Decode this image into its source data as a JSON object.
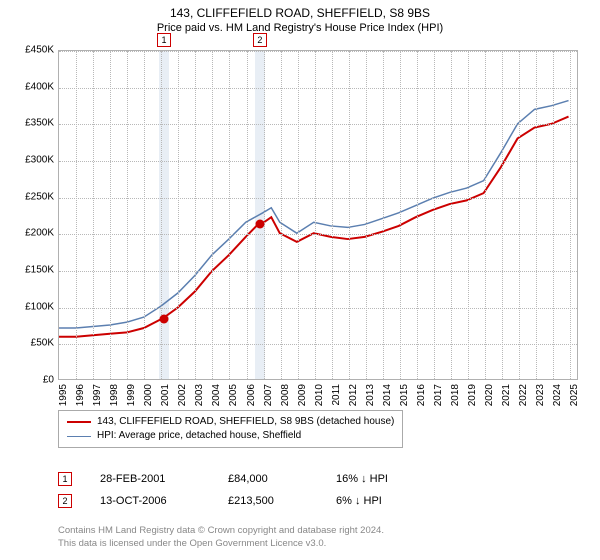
{
  "title": "143, CLIFFEFIELD ROAD, SHEFFIELD, S8 9BS",
  "subtitle": "Price paid vs. HM Land Registry's House Price Index (HPI)",
  "chart": {
    "type": "line",
    "background_color": "#ffffff",
    "grid_color": "#b8b8b8",
    "border_color": "#b0b0b0",
    "vband_color": "#e8eef5",
    "xlim": [
      1995,
      2025.5
    ],
    "ylim": [
      0,
      450000
    ],
    "ytick_step": 50000,
    "yticks": [
      "£0",
      "£50K",
      "£100K",
      "£150K",
      "£200K",
      "£250K",
      "£300K",
      "£350K",
      "£400K",
      "£450K"
    ],
    "xticks": [
      1995,
      1996,
      1997,
      1998,
      1999,
      2000,
      2001,
      2002,
      2003,
      2004,
      2005,
      2006,
      2007,
      2008,
      2009,
      2010,
      2011,
      2012,
      2013,
      2014,
      2015,
      2016,
      2017,
      2018,
      2019,
      2020,
      2021,
      2022,
      2023,
      2024,
      2025
    ],
    "xtick_labels": [
      "1995",
      "1996",
      "1997",
      "1998",
      "1999",
      "2000",
      "2001",
      "2002",
      "2003",
      "2004",
      "2005",
      "2006",
      "2007",
      "2008",
      "2009",
      "2010",
      "2011",
      "2012",
      "2013",
      "2014",
      "2015",
      "2016",
      "2017",
      "2018",
      "2019",
      "2020",
      "2021",
      "2022",
      "2023",
      "2024",
      "2025"
    ],
    "vbands": [
      {
        "x": 2001.16,
        "label": "1"
      },
      {
        "x": 2006.78,
        "label": "2"
      }
    ],
    "vband_width_years": 0.55,
    "series": [
      {
        "name": "143, CLIFFEFIELD ROAD, SHEFFIELD, S8 9BS (detached house)",
        "color": "#cc0000",
        "line_width": 2,
        "x": [
          1995,
          1996,
          1997,
          1998,
          1999,
          2000,
          2001,
          2001.16,
          2002,
          2003,
          2004,
          2005,
          2006,
          2006.78,
          2007,
          2007.5,
          2008,
          2009,
          2010,
          2011,
          2012,
          2013,
          2014,
          2015,
          2016,
          2017,
          2018,
          2019,
          2020,
          2021,
          2022,
          2023,
          2024,
          2025
        ],
        "y": [
          58000,
          58000,
          60000,
          62000,
          64000,
          70000,
          82000,
          84000,
          98000,
          120000,
          148000,
          170000,
          195000,
          213500,
          214000,
          222000,
          200000,
          188000,
          200000,
          195000,
          192000,
          195000,
          202000,
          210000,
          222000,
          232000,
          240000,
          245000,
          255000,
          290000,
          330000,
          345000,
          350000,
          360000
        ]
      },
      {
        "name": "HPI: Average price, detached house, Sheffield",
        "color": "#5b7fb0",
        "line_width": 1.5,
        "x": [
          1995,
          1996,
          1997,
          1998,
          1999,
          2000,
          2001,
          2002,
          2003,
          2004,
          2005,
          2006,
          2007,
          2007.5,
          2008,
          2009,
          2010,
          2011,
          2012,
          2013,
          2014,
          2015,
          2016,
          2017,
          2018,
          2019,
          2020,
          2021,
          2022,
          2023,
          2024,
          2025
        ],
        "y": [
          70000,
          70000,
          72000,
          74000,
          78000,
          85000,
          100000,
          118000,
          142000,
          170000,
          192000,
          215000,
          228000,
          235000,
          215000,
          200000,
          215000,
          210000,
          208000,
          212000,
          220000,
          228000,
          238000,
          248000,
          256000,
          262000,
          272000,
          310000,
          350000,
          370000,
          375000,
          382000
        ]
      }
    ],
    "markers": [
      {
        "x": 2001.16,
        "y": 84000,
        "color": "#cc0000"
      },
      {
        "x": 2006.78,
        "y": 213500,
        "color": "#cc0000"
      }
    ]
  },
  "legend": {
    "items": [
      {
        "color": "#cc0000",
        "width": 2,
        "label": "143, CLIFFEFIELD ROAD, SHEFFIELD, S8 9BS (detached house)"
      },
      {
        "color": "#5b7fb0",
        "width": 1.5,
        "label": "HPI: Average price, detached house, Sheffield"
      }
    ]
  },
  "data_rows": [
    {
      "num": "1",
      "date": "28-FEB-2001",
      "price": "£84,000",
      "hpi": "16% ↓ HPI"
    },
    {
      "num": "2",
      "date": "13-OCT-2006",
      "price": "£213,500",
      "hpi": "6% ↓ HPI"
    }
  ],
  "footer": {
    "line1": "Contains HM Land Registry data © Crown copyright and database right 2024.",
    "line2": "This data is licensed under the Open Government Licence v3.0."
  }
}
